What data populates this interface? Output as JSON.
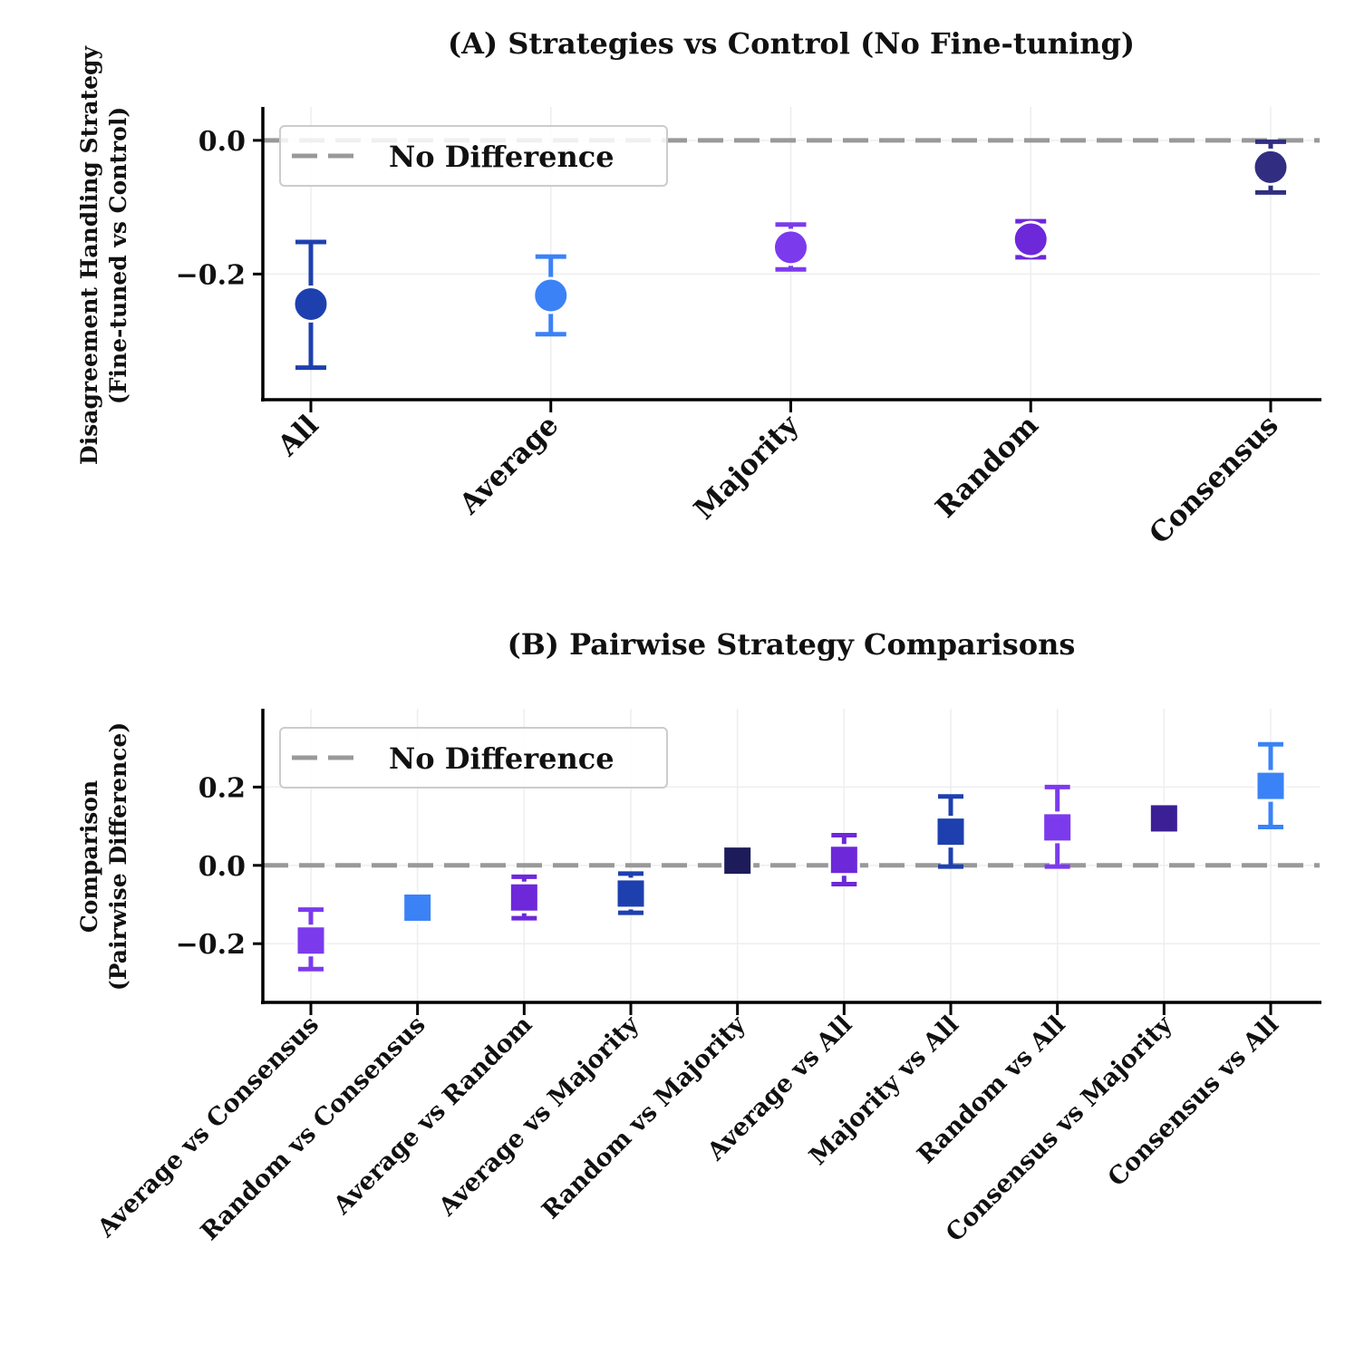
{
  "chart_data": [
    {
      "type": "scatter",
      "title": "(A) Strategies vs Control (No Fine-tuning)",
      "ylabel": [
        "Disagreement Handling Strategy",
        "(Fine-tuned vs Control)"
      ],
      "xlabel": "",
      "categories": [
        "All",
        "Average",
        "Majority",
        "Random",
        "Consensus"
      ],
      "values": [
        -0.245,
        -0.232,
        -0.16,
        -0.148,
        -0.04
      ],
      "ci_low": [
        -0.34,
        -0.29,
        -0.193,
        -0.175,
        -0.078
      ],
      "ci_high": [
        -0.152,
        -0.174,
        -0.126,
        -0.121,
        -0.002
      ],
      "colors": [
        "#1e40af",
        "#3b82f6",
        "#7c3aed",
        "#6d28d9",
        "#312e81"
      ],
      "marker": "circle",
      "yticks": [
        -0.2,
        0.0
      ],
      "ytick_labels": [
        "−0.2",
        "0.0"
      ],
      "ylim": [
        -0.388,
        0.05
      ],
      "reference_line": 0.0,
      "grid": true,
      "legend": {
        "label": "No Difference",
        "position": "upper-left"
      }
    },
    {
      "type": "scatter",
      "title": "(B) Pairwise Strategy Comparisons",
      "ylabel": [
        "Comparison",
        "(Pairwise Difference)"
      ],
      "xlabel": "",
      "categories": [
        "Average vs Consensus",
        "Random vs Consensus",
        "Average vs Random",
        "Average vs Majority",
        "Random vs Majority",
        "Average vs All",
        "Majority vs All",
        "Random vs All",
        "Consensus vs Majority",
        "Consensus vs All"
      ],
      "values": [
        -0.192,
        -0.108,
        -0.082,
        -0.072,
        0.012,
        0.014,
        0.086,
        0.097,
        0.12,
        0.203
      ],
      "ci_low": [
        -0.265,
        -0.138,
        -0.135,
        -0.121,
        -0.02,
        -0.048,
        -0.003,
        -0.003,
        0.086,
        0.098
      ],
      "ci_high": [
        -0.113,
        -0.077,
        -0.029,
        -0.021,
        0.043,
        0.077,
        0.176,
        0.2,
        0.154,
        0.309
      ],
      "colors": [
        "#7c3aed",
        "#3b82f6",
        "#6d28d9",
        "#1e40af",
        "#1e1b5b",
        "#6d28d9",
        "#1e40af",
        "#7c3aed",
        "#3b1f95",
        "#3b82f6"
      ],
      "marker": "square",
      "yticks": [
        -0.2,
        0.0,
        0.2
      ],
      "ytick_labels": [
        "−0.2",
        "0.0",
        "0.2"
      ],
      "ylim": [
        -0.35,
        0.4
      ],
      "reference_line": 0.0,
      "grid": true,
      "legend": {
        "label": "No Difference",
        "position": "upper-left"
      }
    }
  ]
}
